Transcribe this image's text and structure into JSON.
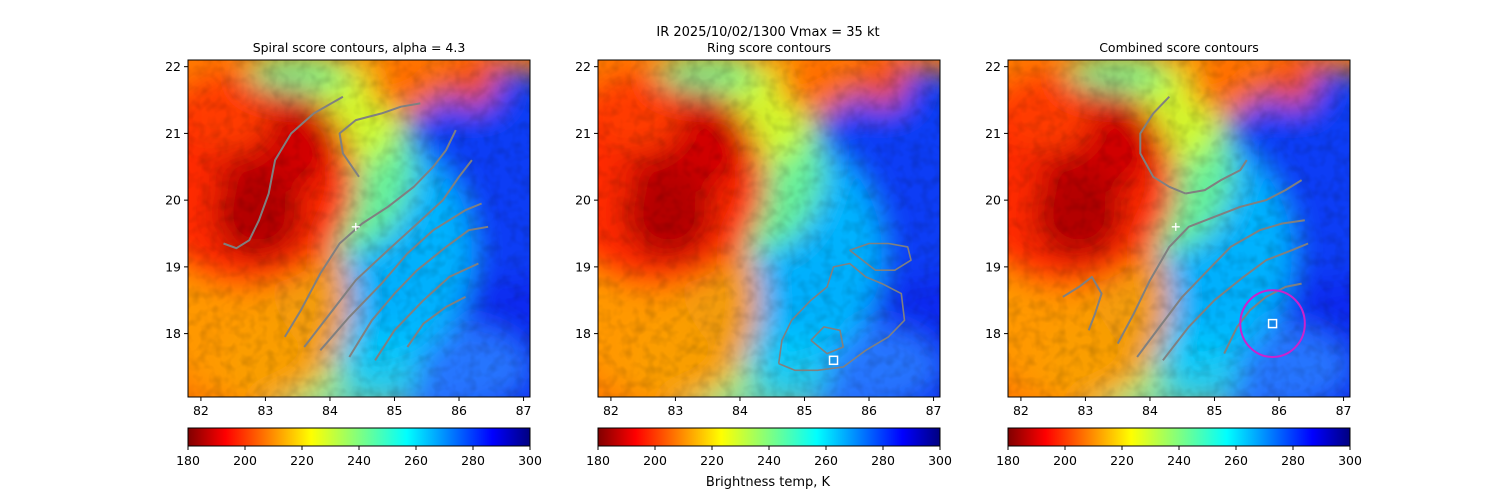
{
  "suptitle": {
    "line1": "IR  2025/10/02/1300    Vmax = 35 kt"
  },
  "colorbar_label": "Brightness temp, K",
  "colors": {
    "contour": "#808080",
    "center_marker": "#ffffff",
    "ring_circle": "#cc22cc",
    "jet_stops": [
      "#800000",
      "#ff0000",
      "#ff8000",
      "#ffff00",
      "#80ff80",
      "#00ffff",
      "#0080ff",
      "#0000ff",
      "#000080"
    ]
  },
  "chart_data": [
    {
      "type": "heatmap",
      "panel": "spiral",
      "title": "Spiral score contours, alpha =  4.3",
      "xlim": [
        81.8,
        87.1
      ],
      "ylim": [
        17.05,
        22.1
      ],
      "xticks": [
        "82",
        "83",
        "84",
        "85",
        "86",
        "87"
      ],
      "yticks": [
        "18",
        "19",
        "20",
        "21",
        "22"
      ],
      "colorbar": {
        "min": 180,
        "max": 300,
        "ticks": [
          "180",
          "200",
          "220",
          "240",
          "260",
          "280",
          "300"
        ]
      },
      "center_marker": {
        "lon": 84.4,
        "lat": 19.6
      },
      "contours": [
        [
          [
            82.35,
            19.35
          ],
          [
            82.55,
            19.28
          ],
          [
            82.75,
            19.4
          ],
          [
            82.9,
            19.7
          ],
          [
            83.05,
            20.1
          ],
          [
            83.15,
            20.6
          ],
          [
            83.4,
            21.0
          ],
          [
            83.75,
            21.3
          ],
          [
            84.2,
            21.55
          ]
        ],
        [
          [
            83.3,
            17.95
          ],
          [
            83.55,
            18.35
          ],
          [
            83.85,
            18.9
          ],
          [
            84.15,
            19.35
          ],
          [
            84.5,
            19.65
          ],
          [
            84.9,
            19.9
          ],
          [
            85.3,
            20.2
          ],
          [
            85.6,
            20.5
          ],
          [
            85.8,
            20.75
          ],
          [
            85.95,
            21.05
          ]
        ],
        [
          [
            84.45,
            20.35
          ],
          [
            84.2,
            20.7
          ],
          [
            84.15,
            21.0
          ],
          [
            84.4,
            21.2
          ],
          [
            84.8,
            21.3
          ],
          [
            85.1,
            21.4
          ],
          [
            85.4,
            21.45
          ]
        ],
        [
          [
            83.6,
            17.8
          ],
          [
            84.0,
            18.3
          ],
          [
            84.4,
            18.8
          ],
          [
            84.9,
            19.25
          ],
          [
            85.3,
            19.6
          ],
          [
            85.75,
            20.0
          ],
          [
            86.0,
            20.35
          ],
          [
            86.2,
            20.6
          ]
        ],
        [
          [
            83.85,
            17.75
          ],
          [
            84.3,
            18.25
          ],
          [
            84.8,
            18.75
          ],
          [
            85.2,
            19.2
          ],
          [
            85.6,
            19.55
          ],
          [
            86.1,
            19.85
          ],
          [
            86.35,
            19.95
          ]
        ],
        [
          [
            84.3,
            17.65
          ],
          [
            84.65,
            18.2
          ],
          [
            85.0,
            18.6
          ],
          [
            85.35,
            18.95
          ],
          [
            85.8,
            19.3
          ],
          [
            86.15,
            19.55
          ],
          [
            86.45,
            19.6
          ]
        ],
        [
          [
            84.7,
            17.6
          ],
          [
            85.0,
            18.05
          ],
          [
            85.45,
            18.5
          ],
          [
            85.85,
            18.85
          ],
          [
            86.3,
            19.05
          ]
        ],
        [
          [
            85.2,
            17.8
          ],
          [
            85.45,
            18.15
          ],
          [
            85.8,
            18.4
          ],
          [
            86.1,
            18.55
          ]
        ]
      ]
    },
    {
      "type": "heatmap",
      "panel": "ring",
      "title": "Ring score contours",
      "xlim": [
        81.8,
        87.1
      ],
      "ylim": [
        17.05,
        22.1
      ],
      "xticks": [
        "82",
        "83",
        "84",
        "85",
        "86",
        "87"
      ],
      "yticks": [
        "18",
        "19",
        "20",
        "21",
        "22"
      ],
      "colorbar": {
        "min": 180,
        "max": 300,
        "ticks": [
          "180",
          "200",
          "220",
          "240",
          "260",
          "280",
          "300"
        ]
      },
      "center_marker": {
        "lon": 85.45,
        "lat": 17.6
      },
      "contours": [
        [
          [
            84.6,
            17.55
          ],
          [
            84.65,
            17.9
          ],
          [
            84.8,
            18.2
          ],
          [
            85.1,
            18.5
          ],
          [
            85.35,
            18.7
          ],
          [
            85.45,
            19.0
          ],
          [
            85.7,
            19.05
          ],
          [
            85.95,
            18.85
          ],
          [
            86.2,
            18.75
          ],
          [
            86.5,
            18.6
          ],
          [
            86.55,
            18.2
          ],
          [
            86.3,
            17.95
          ],
          [
            85.95,
            17.75
          ],
          [
            85.6,
            17.5
          ],
          [
            85.2,
            17.45
          ],
          [
            84.85,
            17.45
          ],
          [
            84.6,
            17.55
          ]
        ],
        [
          [
            85.7,
            19.25
          ],
          [
            85.9,
            19.1
          ],
          [
            86.1,
            18.95
          ],
          [
            86.4,
            18.95
          ],
          [
            86.65,
            19.1
          ],
          [
            86.6,
            19.3
          ],
          [
            86.3,
            19.35
          ],
          [
            86.0,
            19.35
          ],
          [
            85.7,
            19.25
          ]
        ],
        [
          [
            85.1,
            17.9
          ],
          [
            85.3,
            18.1
          ],
          [
            85.55,
            18.05
          ],
          [
            85.6,
            17.8
          ],
          [
            85.35,
            17.7
          ],
          [
            85.1,
            17.9
          ]
        ]
      ]
    },
    {
      "type": "heatmap",
      "panel": "combined",
      "title": "Combined score contours",
      "xlim": [
        81.8,
        87.1
      ],
      "ylim": [
        17.05,
        22.1
      ],
      "xticks": [
        "82",
        "83",
        "84",
        "85",
        "86",
        "87"
      ],
      "yticks": [
        "18",
        "19",
        "20",
        "21",
        "22"
      ],
      "colorbar": {
        "min": 180,
        "max": 300,
        "ticks": [
          "180",
          "200",
          "220",
          "240",
          "260",
          "280",
          "300"
        ]
      },
      "center_marker": {
        "lon": 84.4,
        "lat": 19.6
      },
      "fix_marker": {
        "lon": 85.9,
        "lat": 18.15
      },
      "ring_circle": {
        "lon": 85.9,
        "lat": 18.15,
        "radius_deg": 0.5
      },
      "contours": [
        [
          [
            82.65,
            18.55
          ],
          [
            82.9,
            18.7
          ],
          [
            83.1,
            18.85
          ],
          [
            83.25,
            18.6
          ],
          [
            83.15,
            18.3
          ],
          [
            83.05,
            18.05
          ]
        ],
        [
          [
            84.55,
            20.1
          ],
          [
            84.3,
            20.2
          ],
          [
            84.05,
            20.35
          ],
          [
            83.85,
            20.7
          ],
          [
            83.85,
            21.0
          ],
          [
            84.05,
            21.3
          ],
          [
            84.3,
            21.55
          ]
        ],
        [
          [
            84.55,
            20.1
          ],
          [
            84.85,
            20.15
          ],
          [
            85.1,
            20.3
          ],
          [
            85.4,
            20.45
          ],
          [
            85.5,
            20.6
          ]
        ],
        [
          [
            83.5,
            17.85
          ],
          [
            83.75,
            18.3
          ],
          [
            84.0,
            18.8
          ],
          [
            84.3,
            19.3
          ],
          [
            84.6,
            19.6
          ],
          [
            85.0,
            19.75
          ],
          [
            85.4,
            19.9
          ],
          [
            85.8,
            20.0
          ],
          [
            86.1,
            20.15
          ],
          [
            86.35,
            20.3
          ]
        ],
        [
          [
            83.8,
            17.65
          ],
          [
            84.15,
            18.1
          ],
          [
            84.5,
            18.55
          ],
          [
            84.9,
            18.95
          ],
          [
            85.25,
            19.3
          ],
          [
            85.7,
            19.55
          ],
          [
            86.05,
            19.65
          ],
          [
            86.4,
            19.7
          ]
        ],
        [
          [
            84.2,
            17.6
          ],
          [
            84.6,
            18.1
          ],
          [
            85.0,
            18.5
          ],
          [
            85.45,
            18.85
          ],
          [
            85.8,
            19.1
          ],
          [
            86.2,
            19.25
          ],
          [
            86.45,
            19.35
          ]
        ],
        [
          [
            85.15,
            17.7
          ],
          [
            85.35,
            18.1
          ],
          [
            85.55,
            18.35
          ],
          [
            85.8,
            18.55
          ],
          [
            86.1,
            18.7
          ],
          [
            86.35,
            18.75
          ]
        ]
      ]
    }
  ]
}
